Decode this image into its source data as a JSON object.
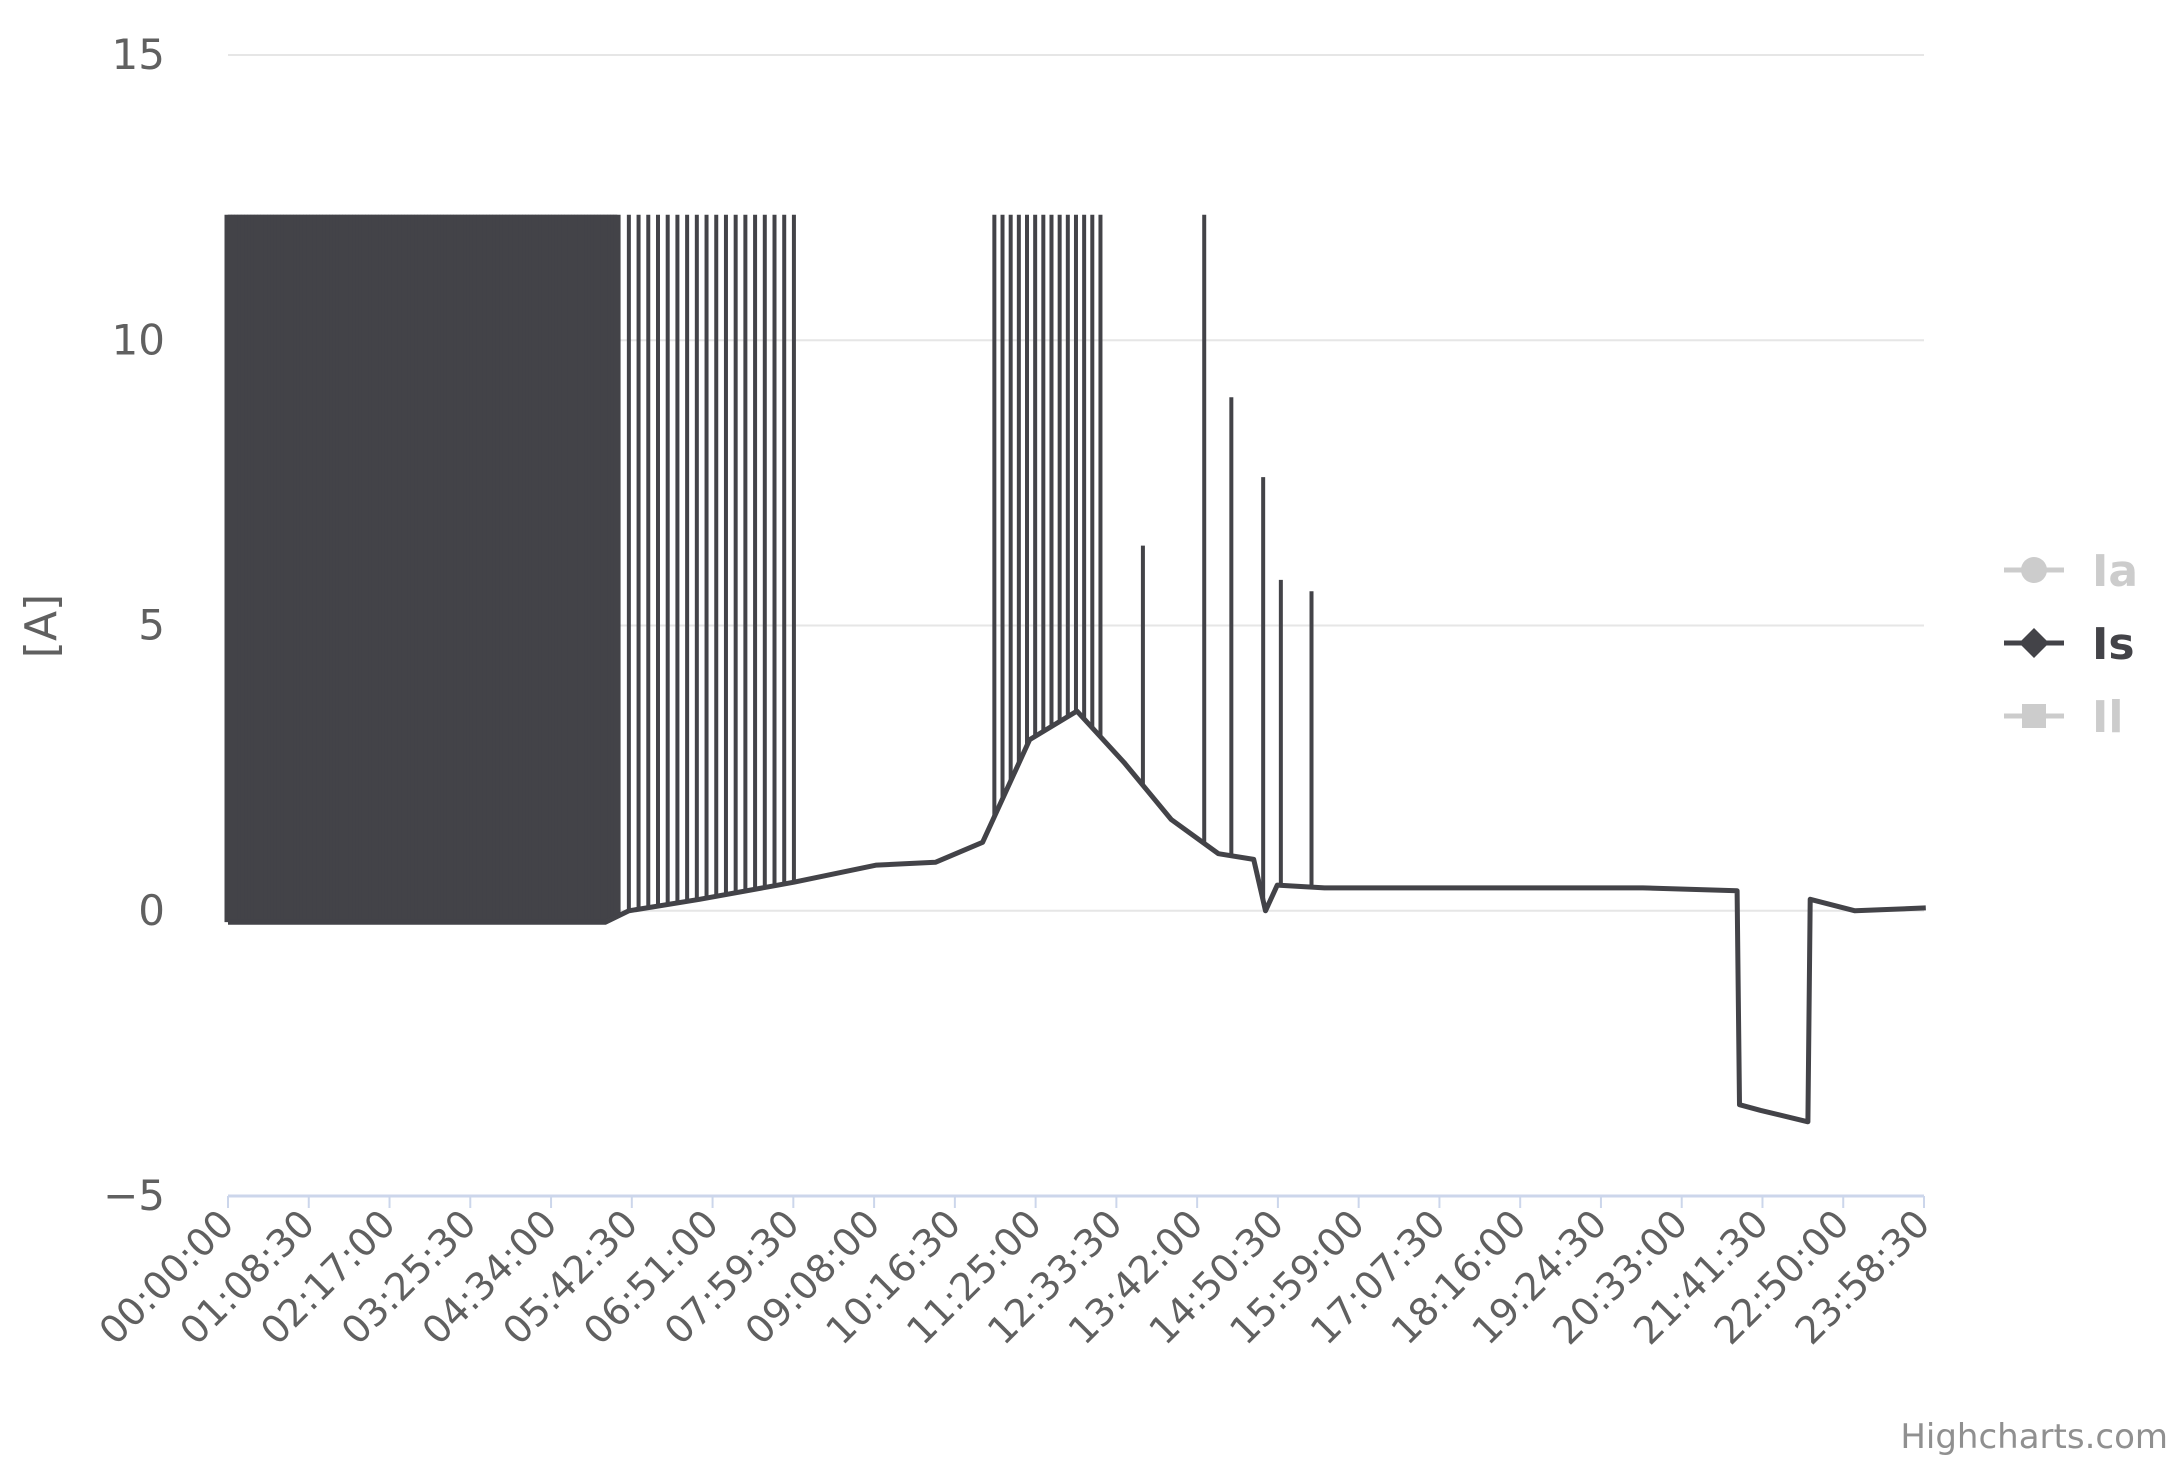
{
  "chart_data": {
    "type": "line",
    "ylabel": "[A]",
    "ylim": [
      -5,
      15
    ],
    "y_ticks": [
      -5,
      0,
      5,
      10,
      15
    ],
    "x_ticks": [
      "00:00:00",
      "01:08:30",
      "02:17:00",
      "03:25:30",
      "04:34:00",
      "05:42:30",
      "06:51:00",
      "07:59:30",
      "09:08:00",
      "10:16:30",
      "11:25:00",
      "12:33:30",
      "13:42:00",
      "14:50:30",
      "15:59:00",
      "17:07:30",
      "18:16:00",
      "19:24:30",
      "20:33:00",
      "21:41:30",
      "22:50:00",
      "23:58:30"
    ],
    "grid": "horizontal",
    "legend_position": "right",
    "colors": {
      "active": "#434348",
      "hidden": "#cccccc",
      "grid": "#e6e6e6",
      "zero_axis": "#ccd6eb"
    },
    "credits": "Highcharts.com",
    "series": [
      {
        "name": "Ia",
        "visible": false,
        "marker": "circle",
        "points": []
      },
      {
        "name": "Is",
        "visible": true,
        "marker": "diamond",
        "baseline": [
          [
            0,
            -0.2
          ],
          [
            320,
            -0.2
          ],
          [
            340,
            0.0
          ],
          [
            400,
            0.2
          ],
          [
            480,
            0.5
          ],
          [
            550,
            0.8
          ],
          [
            600,
            0.85
          ],
          [
            640,
            1.2
          ],
          [
            680,
            3.0
          ],
          [
            720,
            3.5
          ],
          [
            760,
            2.6
          ],
          [
            800,
            1.6
          ],
          [
            840,
            1.0
          ],
          [
            870,
            0.9
          ],
          [
            880,
            0.0
          ],
          [
            890,
            0.45
          ],
          [
            930,
            0.4
          ],
          [
            1200,
            0.4
          ],
          [
            1280,
            0.35
          ],
          [
            1282,
            -3.4
          ],
          [
            1300,
            -3.5
          ],
          [
            1340,
            -3.7
          ],
          [
            1342,
            0.2
          ],
          [
            1380,
            0.0
          ],
          [
            1440,
            0.05
          ]
        ],
        "spikes": [
          {
            "start": 0,
            "end": 330,
            "count": 120,
            "high": 12.2
          },
          {
            "start": 340,
            "end": 480,
            "count": 18,
            "high": 12.2
          },
          {
            "start": 650,
            "end": 740,
            "count": 14,
            "high": 12.2
          },
          {
            "start": 776,
            "end": 776,
            "count": 1,
            "high": 6.4
          },
          {
            "start": 828,
            "end": 828,
            "count": 1,
            "high": 12.2
          },
          {
            "start": 851,
            "end": 851,
            "count": 1,
            "high": 9.0
          },
          {
            "start": 878,
            "end": 878,
            "count": 1,
            "high": 7.6
          },
          {
            "start": 893,
            "end": 893,
            "count": 1,
            "high": 5.8
          },
          {
            "start": 919,
            "end": 919,
            "count": 1,
            "high": 5.6
          }
        ]
      },
      {
        "name": "Il",
        "visible": false,
        "marker": "square",
        "points": []
      }
    ]
  }
}
